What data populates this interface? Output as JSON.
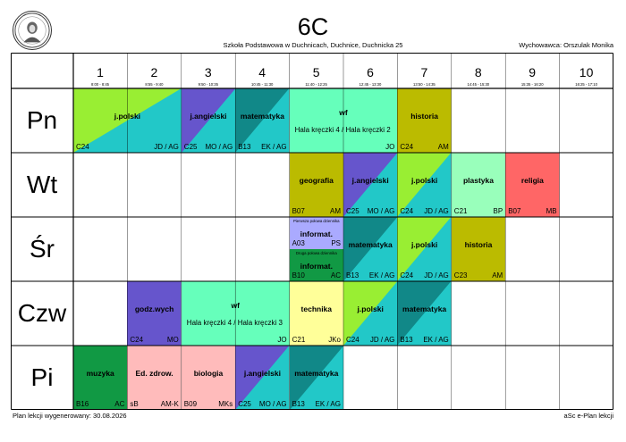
{
  "header": {
    "class_name": "6C",
    "school": "Szkoła Podstawowa w Duchnicach, Duchnice, Duchnicka 25",
    "homeroom": "Wychowawca: Orszulak Monika"
  },
  "periods": [
    {
      "no": "1",
      "time": "8:00 - 8:45"
    },
    {
      "no": "2",
      "time": "8:55 - 9:40"
    },
    {
      "no": "3",
      "time": "9:50 - 10:35"
    },
    {
      "no": "4",
      "time": "10:45 - 11:30"
    },
    {
      "no": "5",
      "time": "11:40 - 12:25"
    },
    {
      "no": "6",
      "time": "12:45 - 13:30"
    },
    {
      "no": "7",
      "time": "13:50 - 14:35"
    },
    {
      "no": "8",
      "time": "14:45 - 15:30"
    },
    {
      "no": "9",
      "time": "15:35 - 16:20"
    },
    {
      "no": "10",
      "time": "16:25 - 17:10"
    }
  ],
  "days": [
    "Pn",
    "Wt",
    "Śr",
    "Czw",
    "Pi"
  ],
  "colors": {
    "jpolski": [
      "#99ee33",
      "#22c8c8"
    ],
    "jangielski": [
      "#6655cc",
      "#22c8c8"
    ],
    "matematyka": [
      "#118888",
      "#22c8c8"
    ],
    "wf": "#66ffbb",
    "historia": "#bbbb00",
    "geografia": "#bbbb00",
    "plastyka": "#99ffbb",
    "religia": "#ff6666",
    "informat_a": "#aaaaff",
    "informat_b": "#119944",
    "technika": "#ffff99",
    "godzwych": "#6655cc",
    "muzyka": "#119944",
    "edzdrow": "#ffbbbb",
    "biologia": "#ffbbbb"
  },
  "lessons": [
    {
      "day": 0,
      "start": 0,
      "span": 2,
      "subject": "j.polski",
      "room": "C24",
      "teacher": "JD / AG",
      "style": "diag",
      "c1": "#99ee33",
      "c2": "#22c8c8"
    },
    {
      "day": 0,
      "start": 2,
      "span": 1,
      "subject": "j.angielski",
      "room": "C25",
      "teacher": "MO / AG",
      "style": "diag",
      "c1": "#6655cc",
      "c2": "#22c8c8"
    },
    {
      "day": 0,
      "start": 3,
      "span": 1,
      "subject": "matematyka",
      "room": "B13",
      "teacher": "EK / AG",
      "style": "diag",
      "c1": "#118888",
      "c2": "#22c8c8"
    },
    {
      "day": 0,
      "start": 4,
      "span": 2,
      "subject": "wf",
      "extra": "Hala kręczki 4 / Hala kręczki 2",
      "room": "",
      "teacher": "JO",
      "style": "solid",
      "c1": "#66ffbb"
    },
    {
      "day": 0,
      "start": 6,
      "span": 1,
      "subject": "historia",
      "room": "C24",
      "teacher": "AM",
      "style": "solid",
      "c1": "#bbbb00"
    },
    {
      "day": 1,
      "start": 4,
      "span": 1,
      "subject": "geografia",
      "room": "B07",
      "teacher": "AM",
      "style": "solid",
      "c1": "#bbbb00"
    },
    {
      "day": 1,
      "start": 5,
      "span": 1,
      "subject": "j.angielski",
      "room": "C25",
      "teacher": "MO / AG",
      "style": "diag",
      "c1": "#6655cc",
      "c2": "#22c8c8"
    },
    {
      "day": 1,
      "start": 6,
      "span": 1,
      "subject": "j.polski",
      "room": "C24",
      "teacher": "JD / AG",
      "style": "diag",
      "c1": "#99ee33",
      "c2": "#22c8c8"
    },
    {
      "day": 1,
      "start": 7,
      "span": 1,
      "subject": "plastyka",
      "room": "C21",
      "teacher": "BP",
      "style": "solid",
      "c1": "#99ffbb"
    },
    {
      "day": 1,
      "start": 8,
      "span": 1,
      "subject": "religia",
      "room": "B07",
      "teacher": "MB",
      "style": "solid",
      "c1": "#ff6666"
    },
    {
      "day": 2,
      "start": 4,
      "span": 1,
      "half": "top",
      "note": "Pierwsza połowa dziennika",
      "subject": "informat.",
      "room": "A03",
      "teacher": "PS",
      "style": "solid",
      "c1": "#aaaaff"
    },
    {
      "day": 2,
      "start": 4,
      "span": 1,
      "half": "bottom",
      "note": "Druga połowa dziennika",
      "subject": "informat.",
      "room": "B10",
      "teacher": "AC",
      "style": "solid",
      "c1": "#119944"
    },
    {
      "day": 2,
      "start": 5,
      "span": 1,
      "subject": "matematyka",
      "room": "B13",
      "teacher": "EK / AG",
      "style": "diag",
      "c1": "#118888",
      "c2": "#22c8c8"
    },
    {
      "day": 2,
      "start": 6,
      "span": 1,
      "subject": "j.polski",
      "room": "C24",
      "teacher": "JD / AG",
      "style": "diag",
      "c1": "#99ee33",
      "c2": "#22c8c8"
    },
    {
      "day": 2,
      "start": 7,
      "span": 1,
      "subject": "historia",
      "room": "C23",
      "teacher": "AM",
      "style": "solid",
      "c1": "#bbbb00"
    },
    {
      "day": 3,
      "start": 1,
      "span": 1,
      "subject": "godz.wych",
      "room": "C24",
      "teacher": "MO",
      "style": "solid",
      "c1": "#6655cc"
    },
    {
      "day": 3,
      "start": 2,
      "span": 2,
      "subject": "wf",
      "extra": "Hala kręczki 4 / Hala kręczki 3",
      "room": "",
      "teacher": "JO",
      "style": "solid",
      "c1": "#66ffbb"
    },
    {
      "day": 3,
      "start": 4,
      "span": 1,
      "subject": "technika",
      "room": "C21",
      "teacher": "JKo",
      "style": "solid",
      "c1": "#ffff99"
    },
    {
      "day": 3,
      "start": 5,
      "span": 1,
      "subject": "j.polski",
      "room": "C24",
      "teacher": "JD / AG",
      "style": "diag",
      "c1": "#99ee33",
      "c2": "#22c8c8"
    },
    {
      "day": 3,
      "start": 6,
      "span": 1,
      "subject": "matematyka",
      "room": "B13",
      "teacher": "EK / AG",
      "style": "diag",
      "c1": "#118888",
      "c2": "#22c8c8"
    },
    {
      "day": 4,
      "start": 0,
      "span": 1,
      "subject": "muzyka",
      "room": "B16",
      "teacher": "AC",
      "style": "solid",
      "c1": "#119944"
    },
    {
      "day": 4,
      "start": 1,
      "span": 1,
      "subject": "Ed. zdrow.",
      "room": "sB",
      "teacher": "AM-K",
      "style": "solid",
      "c1": "#ffbbbb"
    },
    {
      "day": 4,
      "start": 2,
      "span": 1,
      "subject": "biologia",
      "room": "B09",
      "teacher": "MKs",
      "style": "solid",
      "c1": "#ffbbbb"
    },
    {
      "day": 4,
      "start": 3,
      "span": 1,
      "subject": "j.angielski",
      "room": "C25",
      "teacher": "MO / AG",
      "style": "diag",
      "c1": "#6655cc",
      "c2": "#22c8c8"
    },
    {
      "day": 4,
      "start": 4,
      "span": 1,
      "subject": "matematyka",
      "room": "B13",
      "teacher": "EK / AG",
      "style": "diag",
      "c1": "#118888",
      "c2": "#22c8c8"
    }
  ],
  "footer": {
    "generated": "Plan lekcji wygenerowany: 30.08.2026",
    "brand": "aSc e-Plan lekcji"
  }
}
